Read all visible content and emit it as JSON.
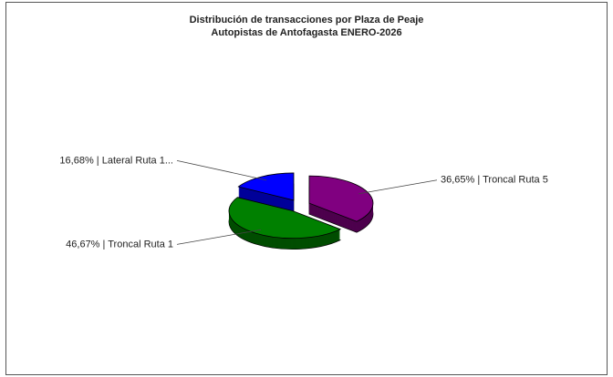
{
  "chart_data": {
    "type": "pie3d",
    "title": "Distribución de transacciones por Plaza de Peaje",
    "subtitle": "Autopistas de Antofagasta ENERO-2026",
    "categories": [
      "Troncal Ruta 5",
      "Troncal Ruta 1",
      "Lateral Ruta 1..."
    ],
    "values": [
      36.65,
      46.67,
      16.68
    ],
    "value_labels": [
      "36,65%",
      "46,67%",
      "16,68%"
    ],
    "label_separator": " | ",
    "colors": [
      "#800080",
      "#008000",
      "#0000ff"
    ]
  }
}
